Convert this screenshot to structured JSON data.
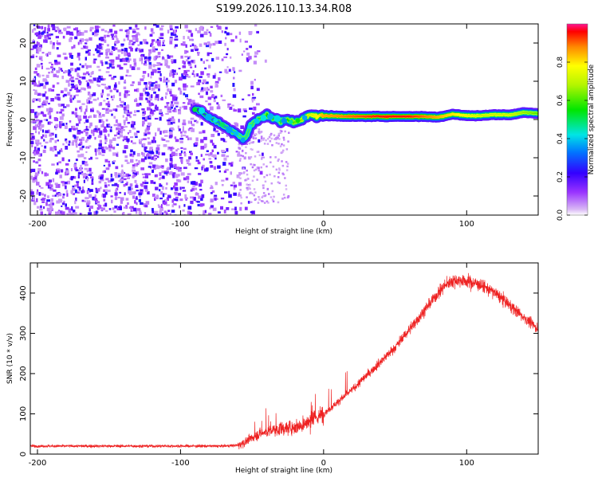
{
  "title": "S199.2026.110.13.34.R08",
  "chart_data": [
    {
      "type": "heatmap",
      "xlabel": "Height of straight line (km)",
      "ylabel": "Frequency (Hz)",
      "xlim": [
        -205,
        150
      ],
      "ylim": [
        -25,
        25
      ],
      "xticks": [
        -200,
        -100,
        0,
        100
      ],
      "yticks": [
        -20,
        -10,
        0,
        10,
        20
      ],
      "colorbar": {
        "label": "Normalized spectral amplitude",
        "range": [
          0,
          1
        ],
        "ticks": [
          0.0,
          0.2,
          0.4,
          0.6,
          0.8
        ],
        "tick_labels": [
          "0.0",
          "0.2",
          "0.4",
          "0.6",
          "0.8"
        ]
      },
      "noise_region": {
        "x_range": [
          -205,
          -60
        ],
        "y_range": [
          -25,
          25
        ],
        "amplitude": [
          0.05,
          0.25
        ]
      },
      "ridge": {
        "x": [
          -90,
          -80,
          -70,
          -60,
          -55,
          -50,
          -45,
          -40,
          -35,
          -30,
          -25,
          -20,
          -15,
          -10,
          -5,
          0,
          20,
          40,
          60,
          70,
          80,
          90,
          100,
          110,
          120,
          130,
          140,
          150
        ],
        "freq": [
          3,
          0.5,
          -1.5,
          -4,
          -5,
          -1,
          0,
          1,
          0.5,
          -0.5,
          0,
          -0.8,
          0,
          1.5,
          0.8,
          1,
          0.8,
          0.8,
          0.8,
          0.8,
          0.6,
          1.4,
          1,
          1,
          1.3,
          1.2,
          1.8,
          1.6
        ],
        "amplitude": [
          0.2,
          0.3,
          0.35,
          0.4,
          0.45,
          0.45,
          0.5,
          0.55,
          0.55,
          0.5,
          0.55,
          0.6,
          0.65,
          0.7,
          0.75,
          0.85,
          0.9,
          0.95,
          0.95,
          0.9,
          0.85,
          0.8,
          0.75,
          0.7,
          0.7,
          0.7,
          0.65,
          0.6
        ]
      }
    },
    {
      "type": "line",
      "xlabel": "Height of straight line (km)",
      "ylabel": "SNR (10 * v/v)",
      "xlim": [
        -205,
        150
      ],
      "ylim": [
        0,
        475
      ],
      "xticks": [
        -200,
        -100,
        0,
        100
      ],
      "yticks": [
        0,
        100,
        200,
        300,
        400
      ],
      "series": [
        {
          "name": "SNR",
          "color": "#ee2222",
          "x": [
            -205,
            -180,
            -150,
            -120,
            -90,
            -70,
            -60,
            -55,
            -50,
            -45,
            -40,
            -35,
            -30,
            -25,
            -20,
            -15,
            -10,
            -5,
            0,
            10,
            20,
            30,
            40,
            50,
            60,
            70,
            80,
            85,
            90,
            95,
            100,
            110,
            120,
            130,
            140,
            150
          ],
          "values": [
            20,
            20,
            20,
            20,
            20,
            20,
            22,
            30,
            40,
            50,
            55,
            60,
            62,
            65,
            68,
            72,
            80,
            90,
            100,
            130,
            160,
            195,
            230,
            265,
            310,
            355,
            400,
            420,
            430,
            432,
            430,
            420,
            400,
            370,
            340,
            310
          ]
        }
      ]
    }
  ]
}
